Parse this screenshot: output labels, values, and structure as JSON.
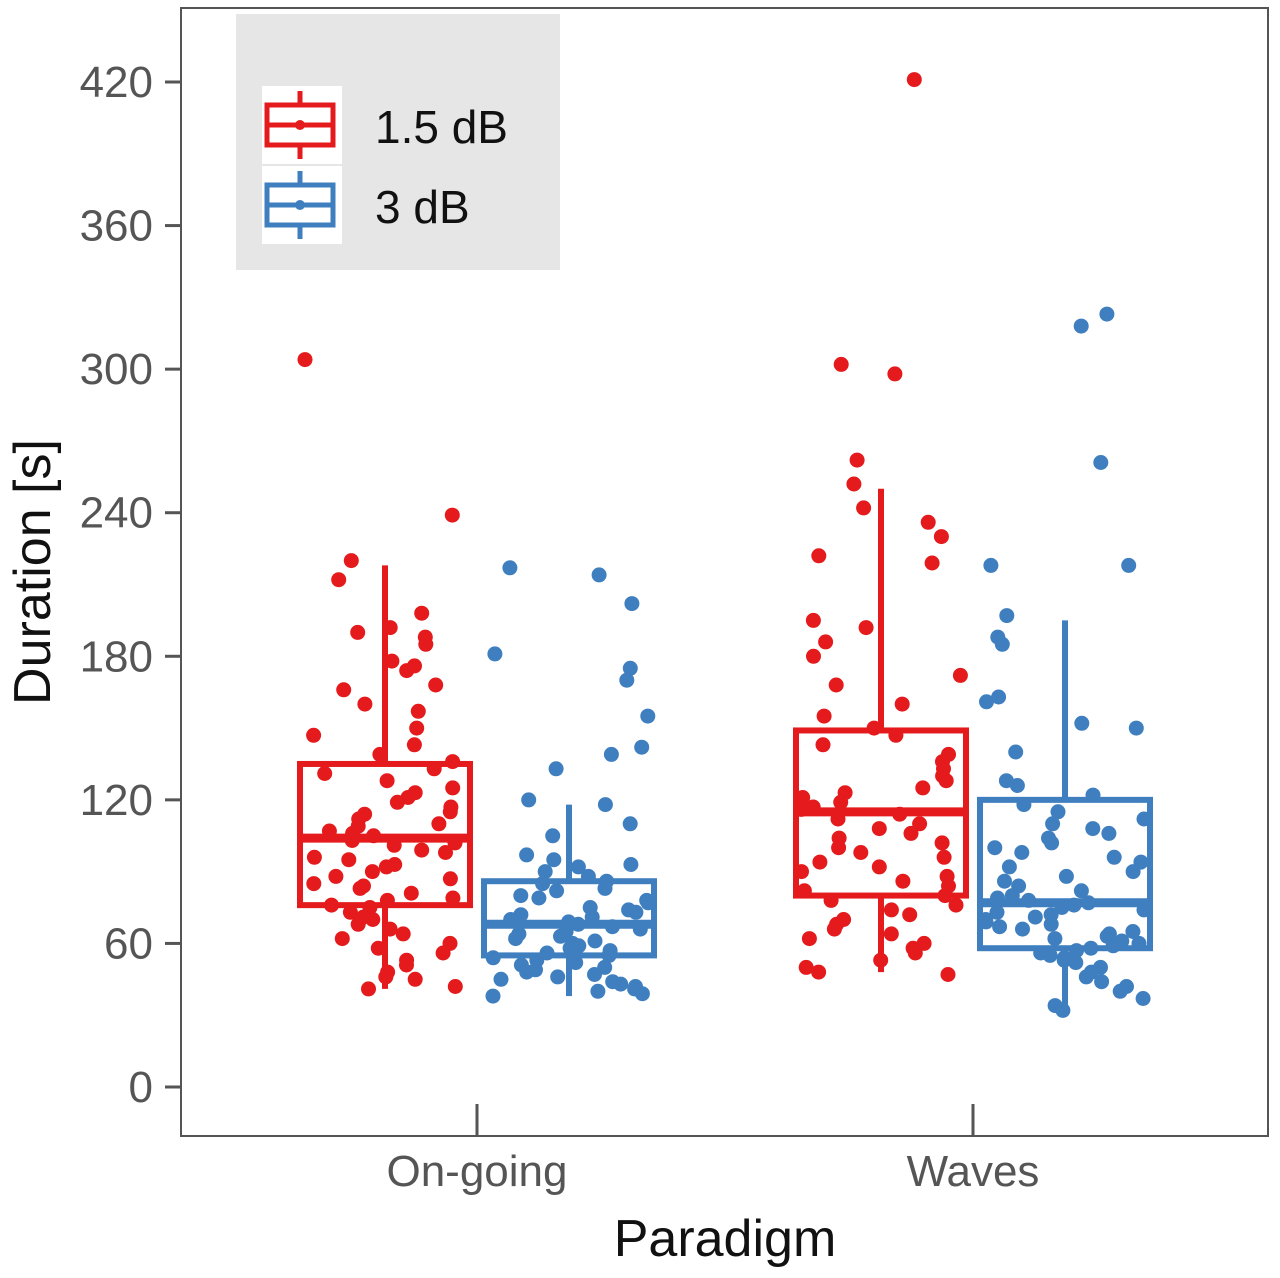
{
  "chart_data": {
    "type": "box",
    "xlabel": "Paradigm",
    "ylabel": "Duration [s]",
    "ylim": [
      -20,
      450
    ],
    "yticks": [
      0,
      60,
      120,
      180,
      240,
      300,
      360,
      420
    ],
    "categories": [
      "On-going",
      "Waves"
    ],
    "legend": {
      "placement": "top-left"
    },
    "colors": {
      "series_0": "#e41a1c",
      "series_1": "#3f7fbf"
    },
    "series": [
      {
        "name": "1.5 dB",
        "boxes": [
          {
            "whisker_low": 41,
            "q1": 76,
            "median": 104,
            "q3": 135,
            "whisker_high": 218
          },
          {
            "whisker_low": 48,
            "q1": 80,
            "median": 115,
            "q3": 149,
            "whisker_high": 250
          }
        ],
        "points": [
          [
            304,
            239,
            220,
            212,
            198,
            192,
            190,
            188,
            185,
            178,
            176,
            174,
            168,
            166,
            160,
            157,
            150,
            147,
            143,
            139,
            136,
            133,
            131,
            128,
            125,
            123,
            121,
            119,
            117,
            115,
            114,
            112,
            110,
            109,
            107,
            106,
            105,
            103,
            102,
            101,
            99,
            98,
            96,
            95,
            93,
            92,
            90,
            88,
            87,
            85,
            84,
            83,
            81,
            79,
            78,
            76,
            75,
            73,
            71,
            70,
            68,
            66,
            64,
            62,
            60,
            58,
            56,
            53,
            51,
            48,
            46,
            45,
            42,
            41
          ],
          [
            421,
            302,
            298,
            262,
            252,
            242,
            236,
            230,
            222,
            219,
            195,
            192,
            186,
            180,
            172,
            168,
            160,
            155,
            150,
            147,
            143,
            139,
            136,
            133,
            130,
            128,
            125,
            123,
            121,
            119,
            117,
            116,
            114,
            112,
            110,
            108,
            106,
            104,
            102,
            100,
            98,
            96,
            94,
            92,
            90,
            88,
            86,
            84,
            82,
            80,
            78,
            76,
            74,
            72,
            70,
            68,
            66,
            64,
            62,
            60,
            58,
            56,
            53,
            50,
            48,
            47
          ]
        ]
      },
      {
        "name": "3 dB",
        "boxes": [
          {
            "whisker_low": 38,
            "q1": 55,
            "median": 68,
            "q3": 86,
            "whisker_high": 118
          },
          {
            "whisker_low": 32,
            "q1": 58,
            "median": 77,
            "q3": 120,
            "whisker_high": 195
          }
        ],
        "points": [
          [
            217,
            214,
            202,
            181,
            175,
            170,
            155,
            142,
            139,
            133,
            120,
            118,
            110,
            105,
            97,
            95,
            93,
            92,
            90,
            88,
            86,
            85,
            83,
            82,
            80,
            79,
            78,
            77,
            75,
            74,
            73,
            72,
            71,
            70,
            69,
            68,
            67,
            66,
            65,
            64,
            63,
            62,
            61,
            60,
            59,
            58,
            57,
            56,
            55,
            54,
            53,
            52,
            51,
            50,
            49,
            48,
            47,
            46,
            45,
            44,
            43,
            42,
            41,
            40,
            39,
            38
          ],
          [
            323,
            318,
            261,
            218,
            218,
            197,
            188,
            185,
            163,
            161,
            152,
            150,
            140,
            128,
            126,
            122,
            118,
            115,
            112,
            110,
            108,
            106,
            104,
            102,
            100,
            98,
            96,
            94,
            92,
            90,
            88,
            86,
            84,
            82,
            80,
            79,
            78,
            77,
            76,
            75,
            74,
            73,
            72,
            71,
            70,
            69,
            68,
            67,
            66,
            65,
            64,
            63,
            62,
            61,
            60,
            59,
            58,
            57,
            56,
            55,
            54,
            53,
            52,
            50,
            48,
            46,
            44,
            42,
            40,
            37,
            34,
            32
          ]
        ]
      }
    ]
  }
}
